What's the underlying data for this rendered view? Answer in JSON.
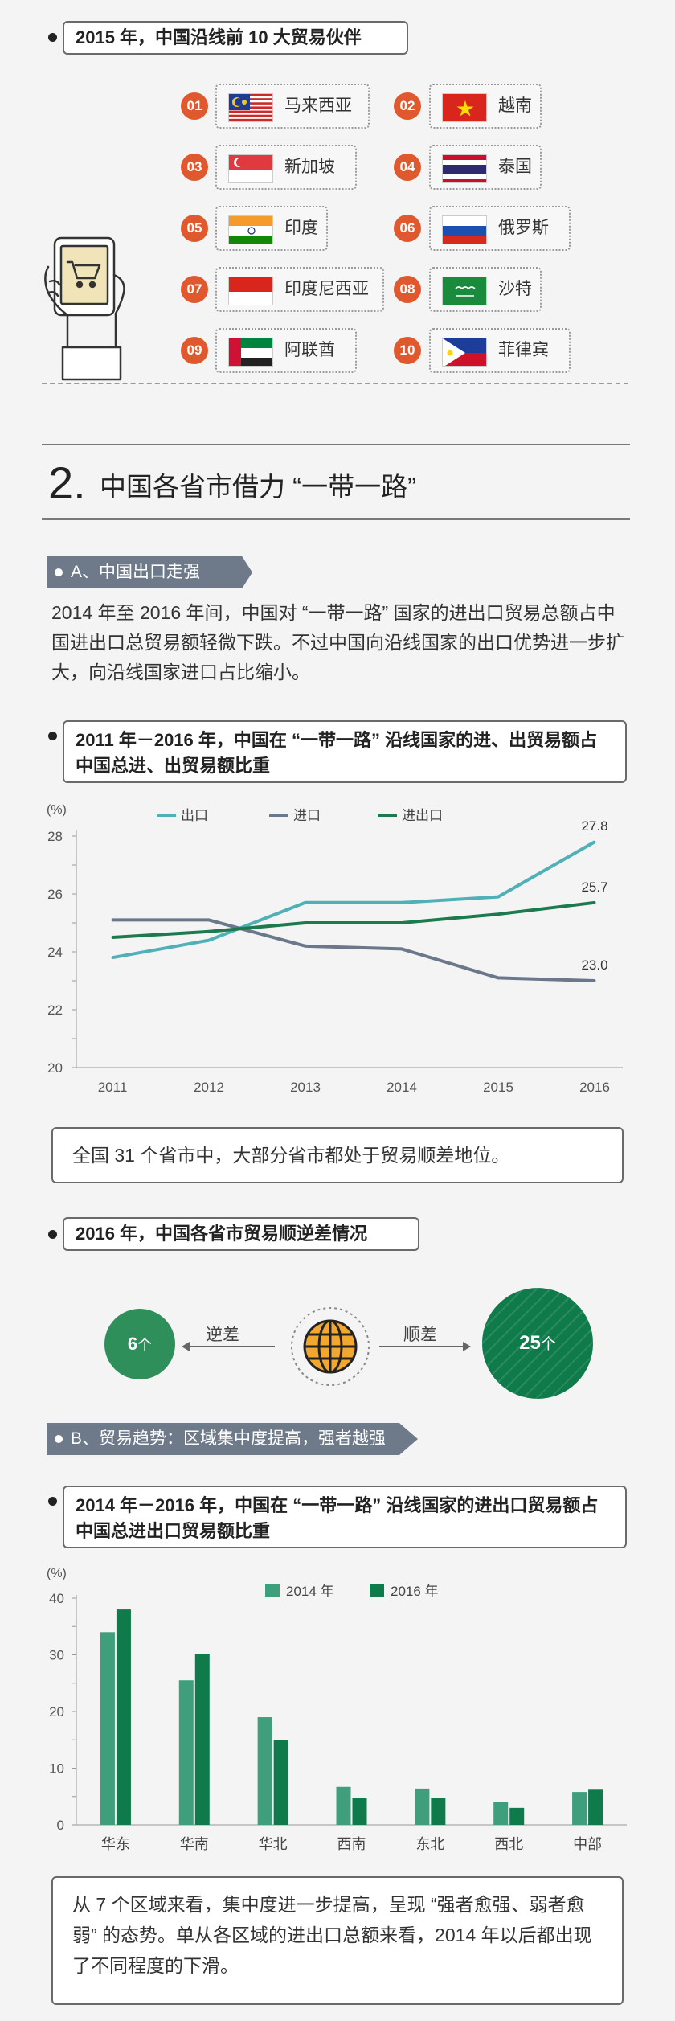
{
  "partners": {
    "title": "2015 年，中国沿线前 10 大贸易伙伴",
    "items": [
      {
        "num": "01",
        "name": "马来西亚",
        "flag": "malaysia"
      },
      {
        "num": "02",
        "name": "越南",
        "flag": "vietnam"
      },
      {
        "num": "03",
        "name": "新加坡",
        "flag": "singapore"
      },
      {
        "num": "04",
        "name": "泰国",
        "flag": "thailand"
      },
      {
        "num": "05",
        "name": "印度",
        "flag": "india"
      },
      {
        "num": "06",
        "name": "俄罗斯",
        "flag": "russia"
      },
      {
        "num": "07",
        "name": "印度尼西亚",
        "flag": "indonesia"
      },
      {
        "num": "08",
        "name": "沙特",
        "flag": "saudi"
      },
      {
        "num": "09",
        "name": "阿联酋",
        "flag": "uae"
      },
      {
        "num": "10",
        "name": "菲律宾",
        "flag": "philippines"
      }
    ]
  },
  "section2": {
    "number": "2.",
    "title": "中国各省市借力 “一带一路”"
  },
  "subA": {
    "tag": "A、中国出口走强",
    "paragraph": "2014 年至 2016 年间，中国对 “一带一路” 国家的进出口贸易总额占中国进出口总贸易额轻微下跌。不过中国向沿线国家的出口优势进一步扩大，向沿线国家进口占比缩小。"
  },
  "line_chart_title": "2011 年－2016 年，中国在 “一带一路” 沿线国家的进、出贸易额占中国总进、出贸易额比重",
  "note1": "全国 31 个省市中，大部分省市都处于贸易顺差地位。",
  "balance": {
    "title": "2016 年，中国各省市贸易顺逆差情况",
    "deficit_value": "6",
    "deficit_unit": "个",
    "deficit_label": "逆差",
    "surplus_value": "25",
    "surplus_unit": "个",
    "surplus_label": "顺差"
  },
  "subB": {
    "tag": "B、贸易趋势：区域集中度提高，强者越强"
  },
  "bar_chart_title": "2014 年－2016 年，中国在 “一带一路” 沿线国家的进出口贸易额占中国总进出口贸易额比重",
  "note2": "从 7 个区域来看，集中度进一步提高，呈现 “强者愈强、弱者愈弱” 的态势。单从各区域的进出口总额来看，2014 年以后都出现了不同程度的下滑。",
  "colors": {
    "export": "#4fb0b8",
    "import": "#6b788b",
    "total": "#1d7a4e",
    "bar2014": "#3f9e7b",
    "bar2016": "#0f7a4a",
    "accent": "#e0582d"
  },
  "chart_data": [
    {
      "type": "line",
      "title": "",
      "ylabel": "(%)",
      "x": [
        "2011",
        "2012",
        "2013",
        "2014",
        "2015",
        "2016"
      ],
      "ylim": [
        20,
        28
      ],
      "yticks": [
        20,
        22,
        24,
        26,
        28
      ],
      "legend_position": "top",
      "series": [
        {
          "name": "出口",
          "values": [
            23.8,
            24.4,
            25.7,
            25.7,
            25.9,
            27.8
          ],
          "end_label": "27.8"
        },
        {
          "name": "进口",
          "values": [
            25.1,
            25.1,
            24.2,
            24.1,
            23.1,
            23.0
          ],
          "end_label": "23.0"
        },
        {
          "name": "进出口",
          "values": [
            24.5,
            24.7,
            25.0,
            25.0,
            25.3,
            25.7
          ],
          "end_label": "25.7"
        }
      ]
    },
    {
      "type": "bar",
      "title": "",
      "ylabel": "(%)",
      "categories": [
        "华东",
        "华南",
        "华北",
        "西南",
        "东北",
        "西北",
        "中部"
      ],
      "ylim": [
        0,
        40
      ],
      "yticks": [
        0,
        10,
        20,
        30,
        40
      ],
      "legend_position": "top",
      "series": [
        {
          "name": "2014 年",
          "values": [
            34,
            25.5,
            19,
            6.7,
            6.4,
            4.0,
            5.8
          ]
        },
        {
          "name": "2016 年",
          "values": [
            38,
            30.2,
            15,
            4.7,
            4.7,
            3.0,
            6.2
          ]
        }
      ]
    }
  ]
}
